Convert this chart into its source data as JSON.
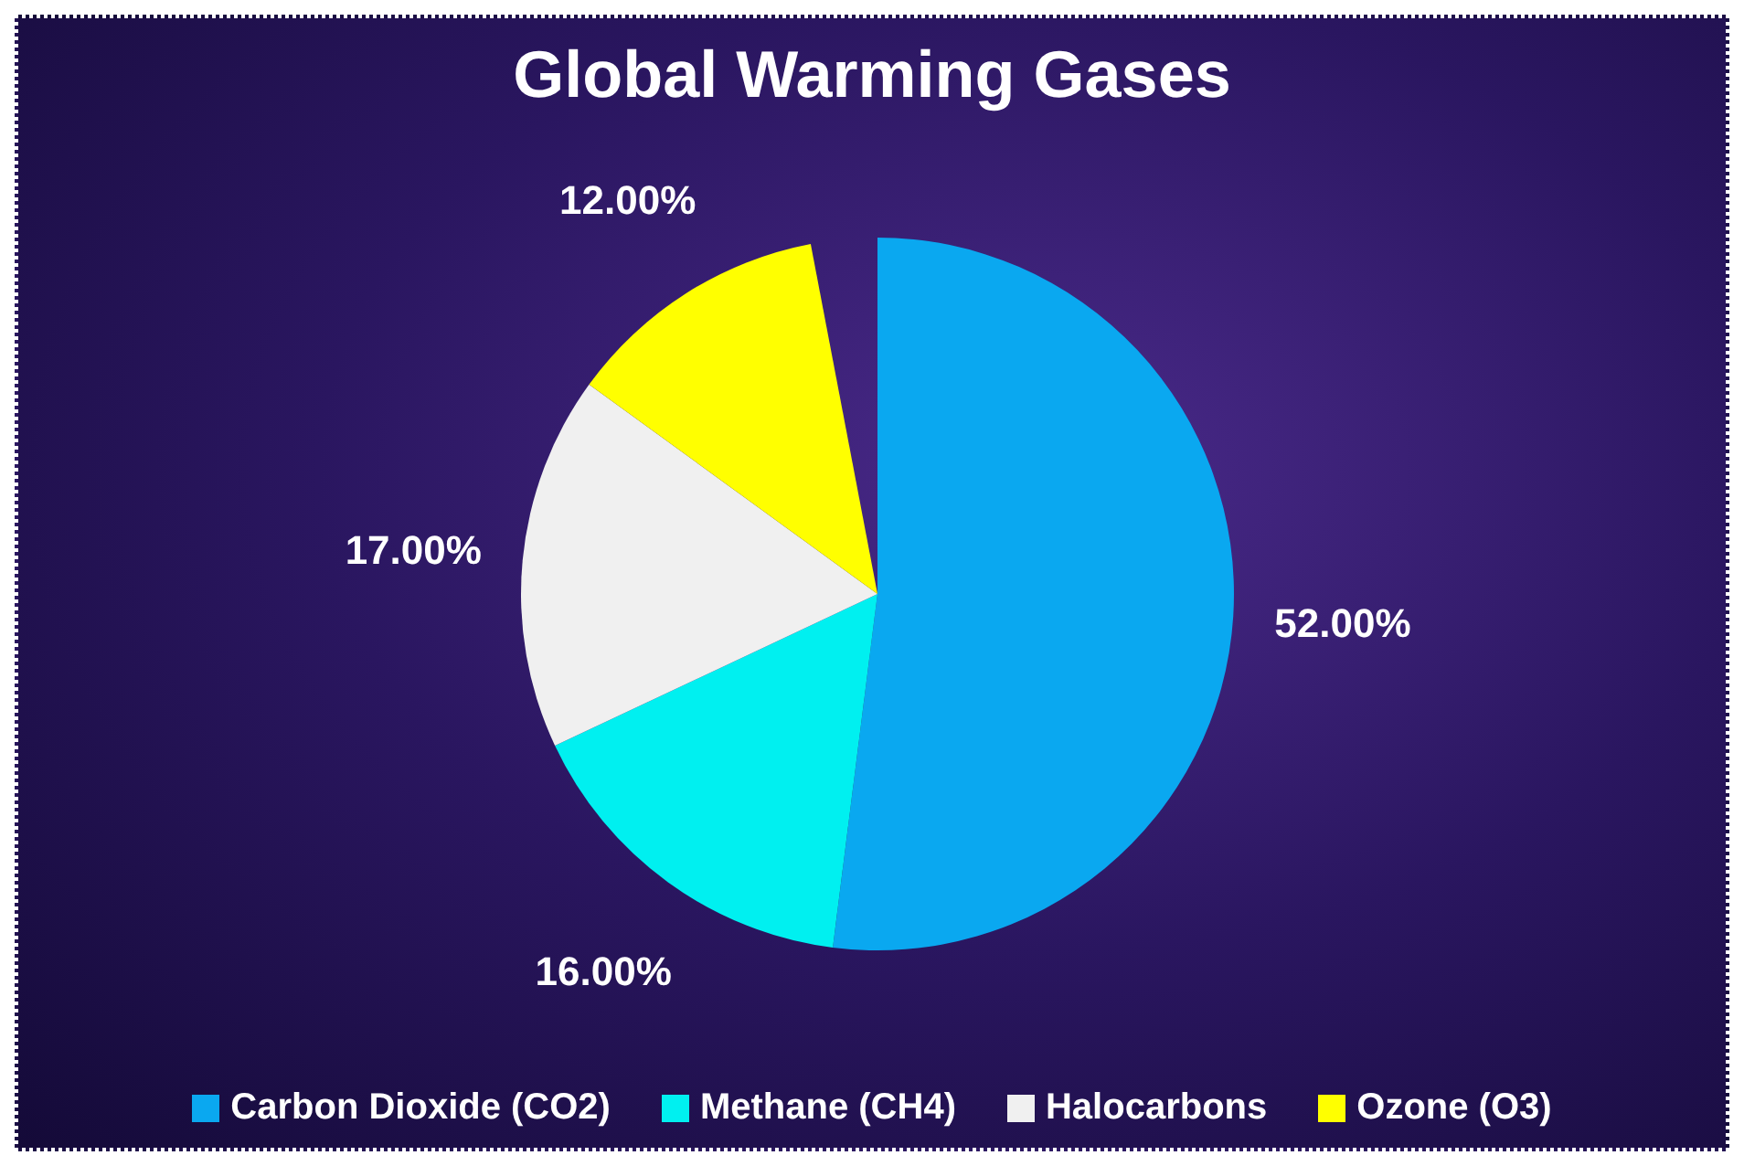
{
  "chart_data": {
    "type": "pie",
    "title": "Global Warming Gases",
    "categories": [
      "Carbon Dioxide (CO2)",
      "Methane (CH4)",
      "Halocarbons",
      "Ozone (O3)"
    ],
    "values": [
      52,
      16,
      17,
      12
    ],
    "value_labels": [
      "52.00%",
      "16.00%",
      "17.00%",
      "12.00%"
    ],
    "colors": [
      "#0aa8f0",
      "#00f0f0",
      "#f0f0f0",
      "#ffff00"
    ],
    "legend": "bottom"
  }
}
